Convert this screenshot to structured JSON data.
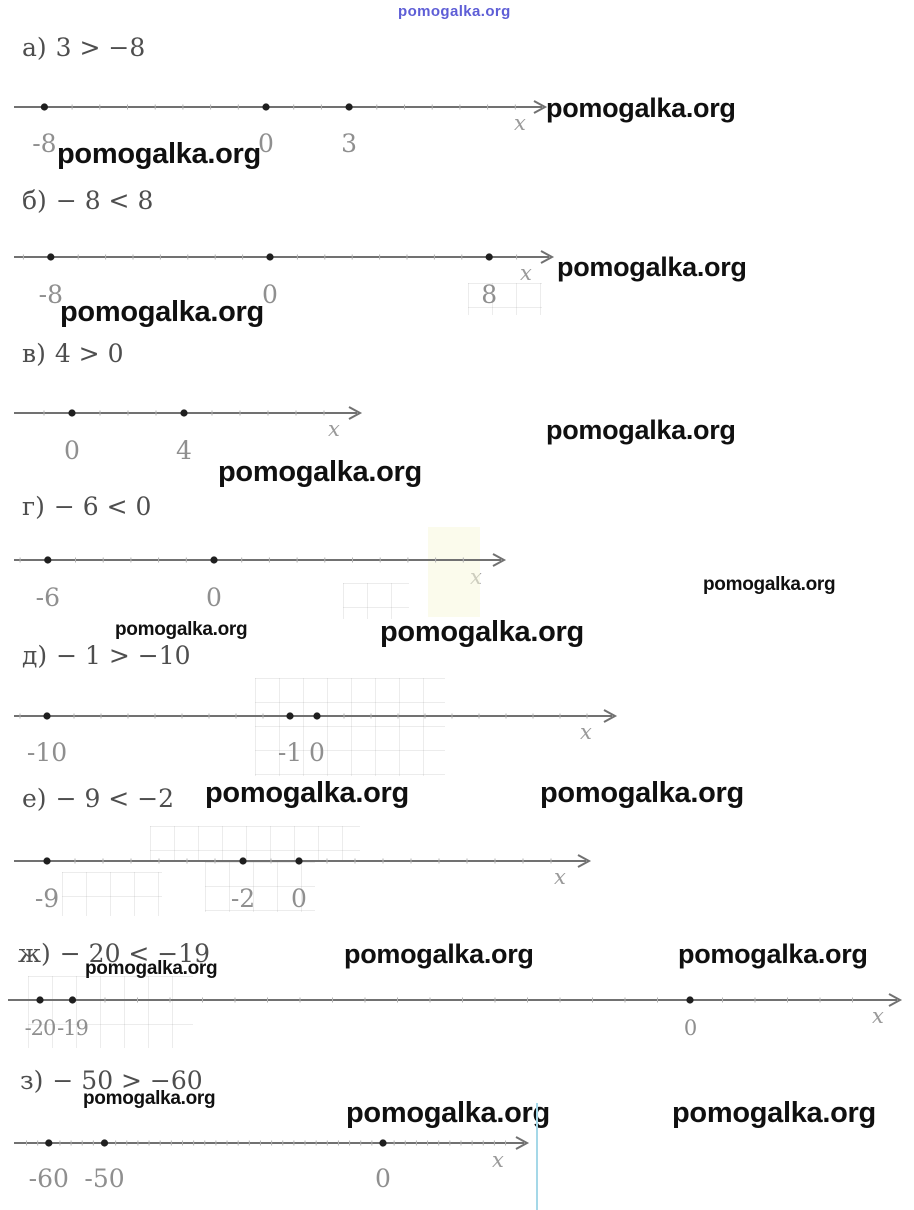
{
  "watermark": {
    "text": "pomogalka.org"
  },
  "axis_label": "x",
  "sections": [
    {
      "id": "a",
      "label": "а)",
      "inequality": "3 > −8",
      "points": [
        {
          "value": -8,
          "label": "-8"
        },
        {
          "value": 0,
          "label": "0"
        },
        {
          "value": 3,
          "label": "3"
        }
      ]
    },
    {
      "id": "b",
      "label": "б)",
      "inequality": "− 8 < 8",
      "points": [
        {
          "value": -8,
          "label": "-8"
        },
        {
          "value": 0,
          "label": "0"
        },
        {
          "value": 8,
          "label": "8"
        }
      ]
    },
    {
      "id": "v",
      "label": "в)",
      "inequality": "4 > 0",
      "points": [
        {
          "value": 0,
          "label": "0"
        },
        {
          "value": 4,
          "label": "4"
        }
      ]
    },
    {
      "id": "g",
      "label": "г)",
      "inequality": "− 6 < 0",
      "points": [
        {
          "value": -6,
          "label": "-6"
        },
        {
          "value": 0,
          "label": "0"
        }
      ]
    },
    {
      "id": "d",
      "label": "д)",
      "inequality": "− 1 > −10",
      "points": [
        {
          "value": -10,
          "label": "-10"
        },
        {
          "value": -1,
          "label": "-1"
        },
        {
          "value": 0,
          "label": "0"
        }
      ]
    },
    {
      "id": "e",
      "label": "е)",
      "inequality": "− 9 < −2",
      "points": [
        {
          "value": -9,
          "label": "-9"
        },
        {
          "value": -2,
          "label": "-2"
        },
        {
          "value": 0,
          "label": "0"
        }
      ]
    },
    {
      "id": "zh",
      "label": "ж)",
      "inequality": "− 20 < −19",
      "points": [
        {
          "value": -20,
          "label": "-20"
        },
        {
          "value": -19,
          "label": "-19"
        },
        {
          "value": 0,
          "label": "0"
        }
      ]
    },
    {
      "id": "z",
      "label": "з)",
      "inequality": "− 50 > −60",
      "points": [
        {
          "value": -60,
          "label": "-60"
        },
        {
          "value": -50,
          "label": "-50"
        },
        {
          "value": 0,
          "label": "0"
        }
      ]
    }
  ]
}
